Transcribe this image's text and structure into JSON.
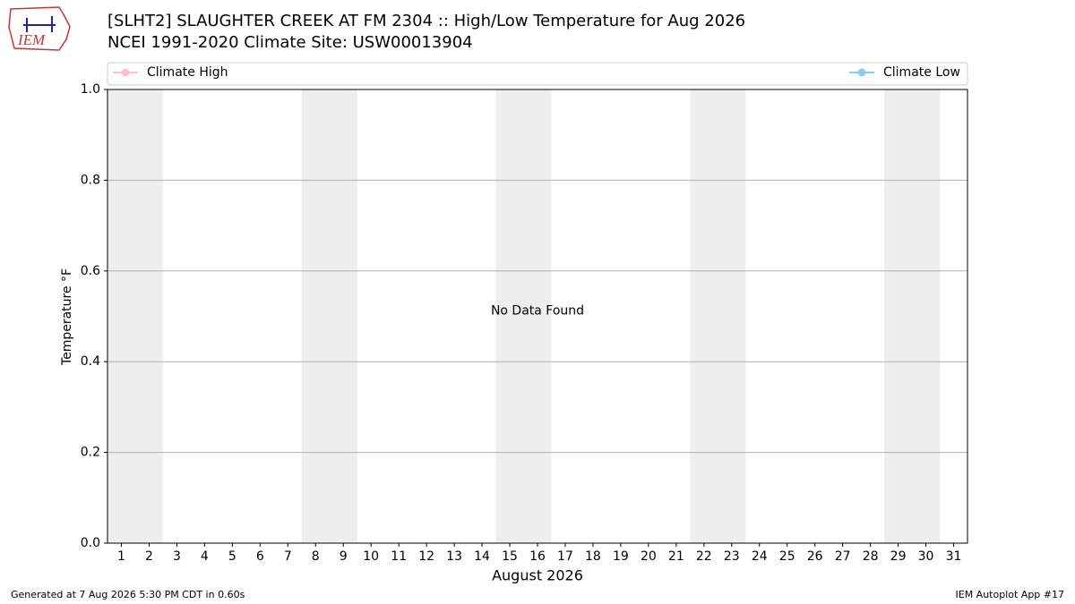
{
  "chart_data": {
    "type": "line",
    "logo_text": "IEM",
    "title": "[SLHT2] SLAUGHTER CREEK AT FM 2304 :: High/Low Temperature for Aug 2026",
    "subtitle": "NCEI 1991-2020 Climate Site: USW00013904",
    "ylabel": "Temperature °F",
    "xlabel": "August 2026",
    "annotation": "No Data Found",
    "footer_left": "Generated at 7 Aug 2026 5:30 PM CDT in 0.60s",
    "footer_right": "IEM Autoplot App #17",
    "x": [],
    "series": [
      {
        "name": "Climate High",
        "color": "#ffc0cb",
        "values": []
      },
      {
        "name": "Climate Low",
        "color": "#87ceeb",
        "values": []
      }
    ],
    "weekend_spans": [
      [
        0.5,
        2.5
      ],
      [
        7.5,
        9.5
      ],
      [
        14.5,
        16.5
      ],
      [
        21.5,
        23.5
      ],
      [
        28.5,
        30.5
      ]
    ],
    "span_color": "#eeeeee",
    "xlim": [
      0.5,
      31.5
    ],
    "xticks": [
      1,
      2,
      3,
      4,
      5,
      6,
      7,
      8,
      9,
      10,
      11,
      12,
      13,
      14,
      15,
      16,
      17,
      18,
      19,
      20,
      21,
      22,
      23,
      24,
      25,
      26,
      27,
      28,
      29,
      30,
      31
    ],
    "ylim": [
      0,
      1
    ],
    "yticks": [
      {
        "value": 0,
        "label": "0.0"
      },
      0.2,
      0.4,
      0.6,
      0.8,
      {
        "value": 1,
        "label": "1.0"
      }
    ],
    "grid": true
  }
}
